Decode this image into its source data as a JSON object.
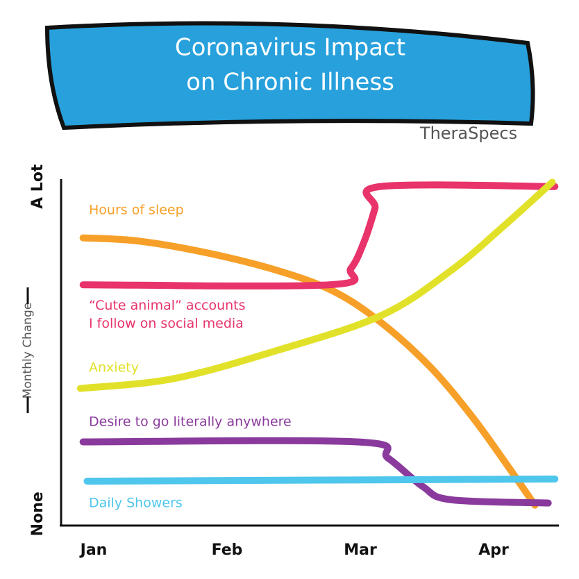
{
  "chart_data": {
    "type": "line",
    "title": "Coronavirus Impact on Chronic Illness",
    "brand": "TheraSpecs",
    "y_label": "Monthly Change",
    "xlim": [
      -0.25,
      3.5
    ],
    "xticks": [
      {
        "value": 0,
        "label": "Jan"
      },
      {
        "value": 1,
        "label": "Feb"
      },
      {
        "value": 2,
        "label": "Mar"
      },
      {
        "value": 3,
        "label": "Apr"
      }
    ],
    "ylim": [
      -0.1,
      3.1
    ],
    "yticks": [
      {
        "value": 0,
        "label": "None"
      },
      1,
      2,
      {
        "value": 3,
        "label": "A Lot"
      }
    ],
    "series": [
      {
        "name": "Hours of sleep",
        "color": "#f7a029",
        "x": [
          -0.08,
          0.34,
          0.86,
          1.38,
          1.8,
          2.16,
          2.53,
          2.84,
          3.1,
          3.31
        ],
        "values": [
          2.53,
          2.5,
          2.39,
          2.23,
          2.04,
          1.75,
          1.34,
          0.89,
          0.45,
          0.08
        ]
      },
      {
        "name": "“Cute animal” accounts I follow on social media",
        "color": "#e8336b",
        "x": [
          -0.08,
          1.77,
          1.93,
          2.03,
          2.11,
          2.15,
          3.46
        ],
        "values": [
          2.1,
          2.1,
          2.25,
          2.5,
          2.8,
          3.0,
          3.0
        ]
      },
      {
        "name": "Anxiety",
        "color": "#e2e12a",
        "x": [
          -0.1,
          0.6,
          1.38,
          2.16,
          2.68,
          3.05,
          3.44
        ],
        "values": [
          1.15,
          1.24,
          1.5,
          1.82,
          2.23,
          2.61,
          3.04
        ]
      },
      {
        "name": "Desire to go literally anywhere",
        "color": "#8a3a9c",
        "x": [
          -0.08,
          1.98,
          2.21,
          2.47,
          2.68,
          3.41
        ],
        "values": [
          0.66,
          0.66,
          0.51,
          0.25,
          0.13,
          0.1
        ]
      },
      {
        "name": "Daily Showers",
        "color": "#4fc6ec",
        "x": [
          -0.05,
          3.46
        ],
        "values": [
          0.3,
          0.32
        ]
      }
    ]
  }
}
